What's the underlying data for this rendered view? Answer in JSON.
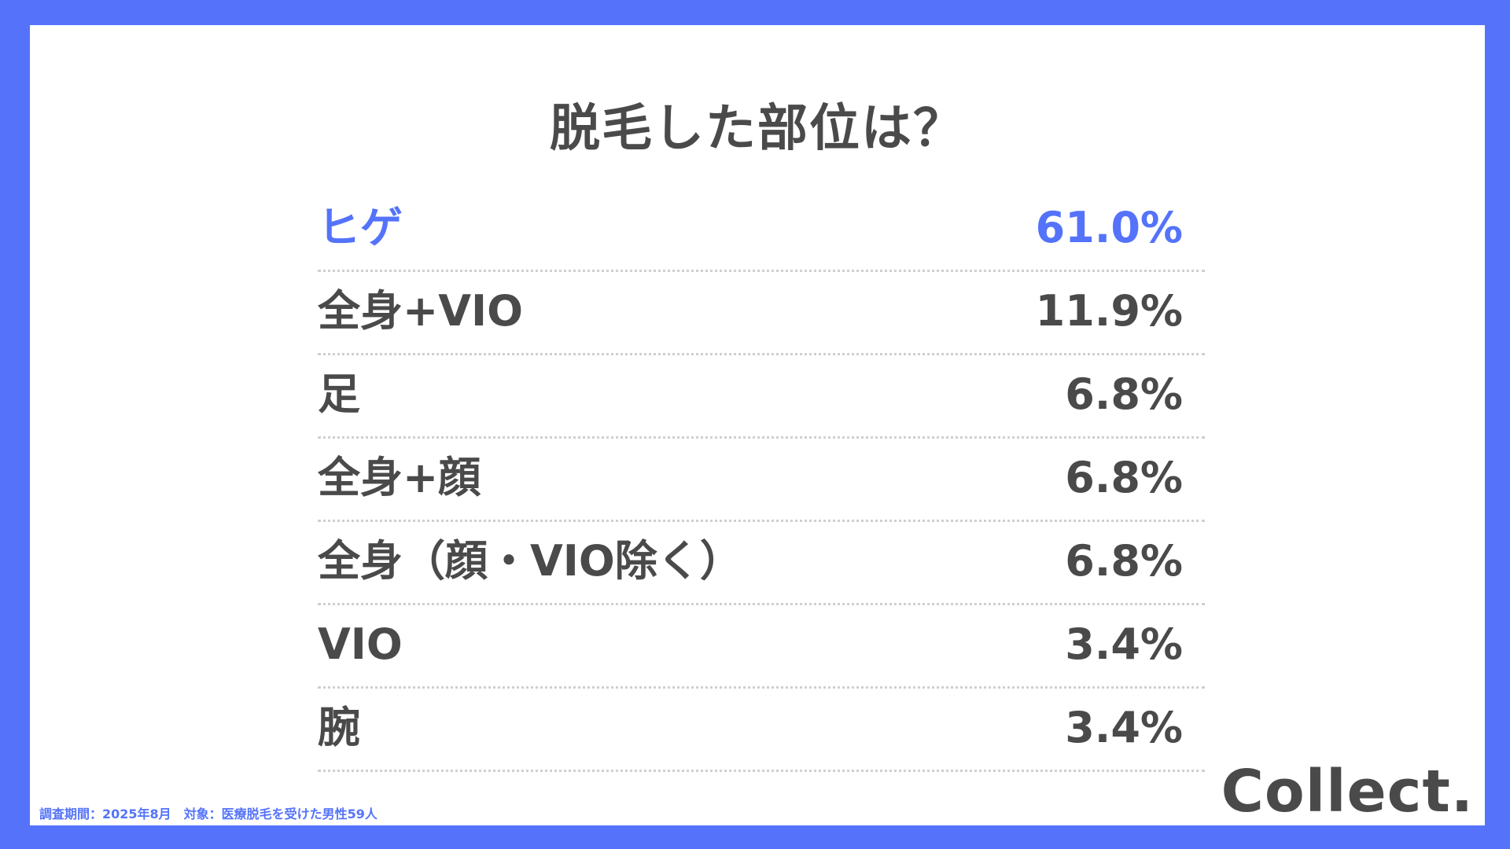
{
  "title": "脱毛した部位は？",
  "colors": {
    "accent": "#5473FA",
    "text": "#4A4A4A",
    "background": "#FFFFFF",
    "divider": "#CFCFCF"
  },
  "chart_data": {
    "type": "table",
    "title": "脱毛した部位は？",
    "highlight_index": 0,
    "categories": [
      "ヒゲ",
      "全身+VIO",
      "足",
      "全身+顔",
      "全身（顔・VIO除く）",
      "VIO",
      "腕"
    ],
    "values": [
      61.0,
      11.9,
      6.8,
      6.8,
      6.8,
      3.4,
      3.4
    ],
    "value_labels": [
      "61.0%",
      "11.9%",
      "6.8%",
      "6.8%",
      "6.8%",
      "3.4%",
      "3.4%"
    ],
    "unit": "%"
  },
  "footnote": "調査期間：2025年8月　対象：医療脱毛を受けた男性59人",
  "logo": "Collect."
}
